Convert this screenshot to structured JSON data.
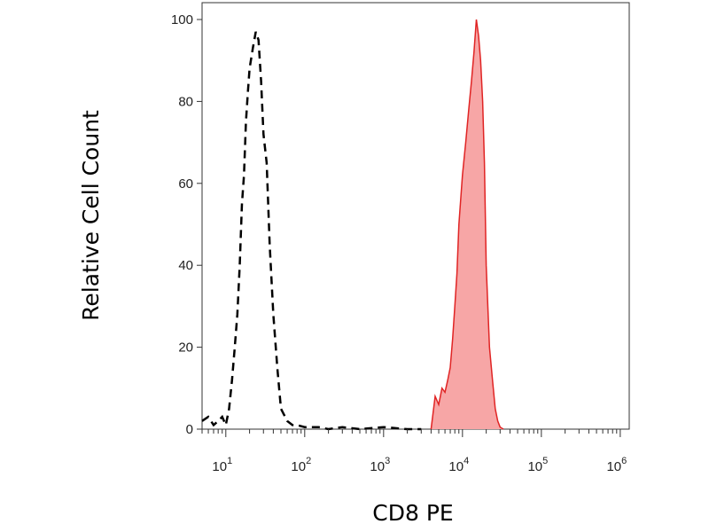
{
  "chart_data": {
    "type": "area",
    "xlabel": "CD8 PE",
    "ylabel": "Relative Cell Count",
    "x_scale": "log",
    "xlim": [
      5,
      1300000
    ],
    "ylim": [
      0,
      100
    ],
    "x_ticks": [
      {
        "base": "10",
        "exp": "1",
        "value": 10
      },
      {
        "base": "10",
        "exp": "2",
        "value": 100
      },
      {
        "base": "10",
        "exp": "3",
        "value": 1000
      },
      {
        "base": "10",
        "exp": "4",
        "value": 10000
      },
      {
        "base": "10",
        "exp": "5",
        "value": 100000
      },
      {
        "base": "10",
        "exp": "6",
        "value": 1000000
      }
    ],
    "y_ticks": [
      "0",
      "20",
      "40",
      "60",
      "80",
      "100"
    ],
    "grid": false,
    "series": [
      {
        "style": "dashed-line",
        "color": "#000000",
        "x": [
          5,
          6,
          7,
          8,
          9,
          10,
          11,
          12,
          13,
          14,
          15,
          16,
          17,
          18,
          19,
          20,
          22,
          24,
          26,
          28,
          30,
          33,
          36,
          40,
          45,
          50,
          60,
          70,
          80,
          100,
          150,
          200,
          300,
          500,
          1000,
          2000,
          3000
        ],
        "y": [
          2,
          3,
          1,
          2,
          3,
          1,
          5,
          12,
          20,
          28,
          40,
          55,
          62,
          75,
          82,
          88,
          93,
          97,
          95,
          85,
          72,
          65,
          45,
          28,
          15,
          5,
          2,
          1,
          1,
          0.5,
          0.5,
          0,
          0.5,
          0,
          0.5,
          0,
          0
        ]
      },
      {
        "style": "filled",
        "color": "#e02424",
        "fill": "#f7a6a6",
        "x": [
          4000,
          4500,
          5000,
          5500,
          6000,
          6500,
          7000,
          7500,
          8000,
          8500,
          9000,
          10000,
          11000,
          12000,
          13000,
          14000,
          15000,
          16000,
          17000,
          18000,
          19000,
          20000,
          22000,
          24000,
          26000,
          28000,
          30000,
          33000
        ],
        "y": [
          0,
          8,
          6,
          10,
          9,
          12,
          15,
          22,
          30,
          38,
          50,
          62,
          70,
          78,
          85,
          92,
          100,
          96,
          90,
          80,
          65,
          40,
          20,
          12,
          5,
          2,
          0.5,
          0
        ]
      }
    ]
  }
}
